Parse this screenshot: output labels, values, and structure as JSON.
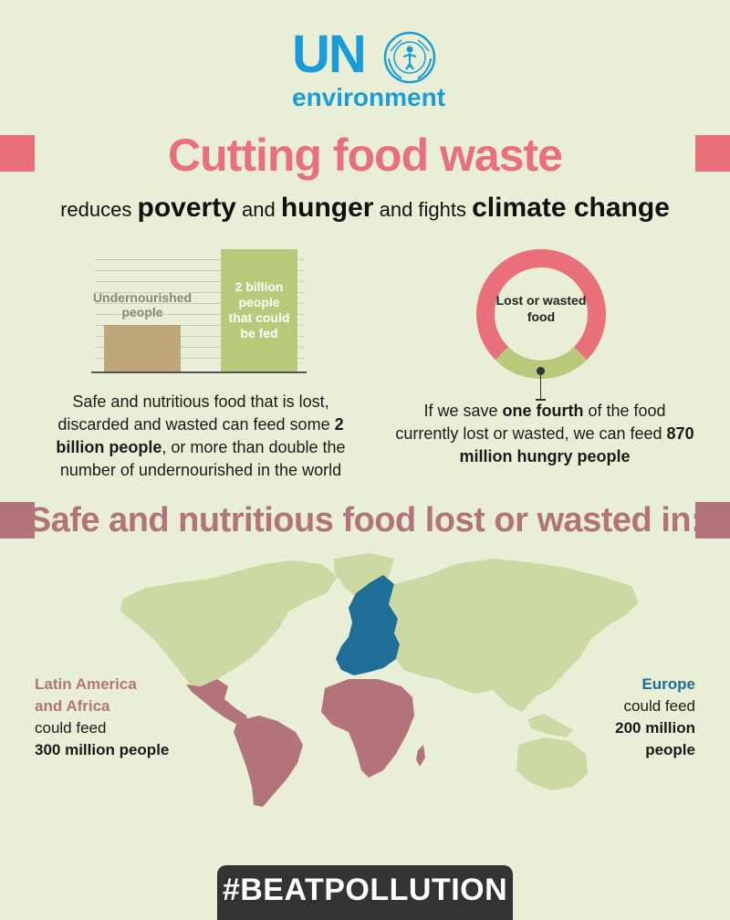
{
  "logo": {
    "un": "UN",
    "environment": "environment",
    "emblem_icon": "un-emblem-icon",
    "color": "#1b9bd7"
  },
  "title": "Cutting food waste",
  "subtitle": {
    "p1": "reduces ",
    "b1": "poverty",
    "p2": " and ",
    "b2": "hunger",
    "p3": " and fights ",
    "b3": "climate change"
  },
  "bar_chart": {
    "undernourished_label": "Undernourished people",
    "billion_label": "2 billion people that could be fed",
    "undernourished_relative": 0.38,
    "billion_relative": 1.0,
    "colors": {
      "undernourished": "#bea77a",
      "billion": "#b9c97a"
    }
  },
  "left_text": {
    "t1": "Safe and nutritious food that is lost, discarded and wasted can feed some ",
    "b1": "2 billion people",
    "t2": ", or more than double the number of undernourished in the world"
  },
  "donut": {
    "label": "Lost or wasted food",
    "saved_fraction": 0.25,
    "colors": {
      "lost": "#e9707a",
      "saved": "#b9c97a"
    }
  },
  "right_text": {
    "t1": "If we save ",
    "b1": "one fourth",
    "t2": " of the food currently lost or wasted, we can feed ",
    "b2": "870 million hungry people"
  },
  "section_title": "Safe and nutritious food lost or wasted in:",
  "regions": {
    "latam": {
      "name_line1": "Latin America",
      "name_line2": "and Africa",
      "could_feed": "could feed",
      "amount": "300 million people"
    },
    "europe": {
      "name": "Europe",
      "could_feed": "could feed",
      "amount_line1": "200 million",
      "amount_line2": "people"
    }
  },
  "map_colors": {
    "land": "#ccd9a3",
    "latam_africa": "#b2747a",
    "europe": "#1f6e97"
  },
  "hashtag": "#BEATPOLLUTION",
  "colors": {
    "background": "#e9efd6",
    "title": "#e9707a",
    "section": "#b2747a"
  }
}
